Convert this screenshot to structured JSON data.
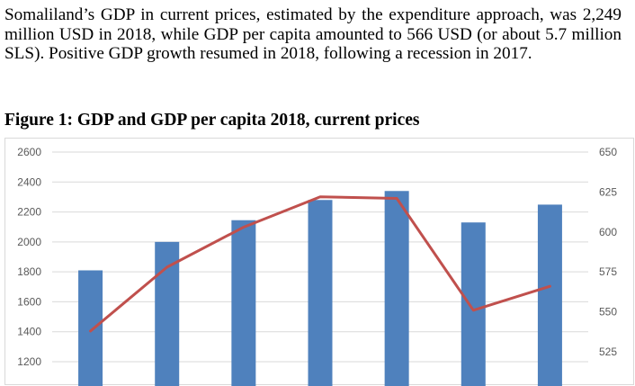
{
  "paragraph": "Somaliland’s GDP in current prices, estimated by the expenditure approach, was 2,249 million USD in 2018, while GDP per capita amounted to 566 USD (or about 5.7 million SLS). Positive GDP growth resumed in 2018, following a recession in 2017.",
  "figure_title": "Figure 1: GDP and GDP per capita 2018, current prices",
  "chart_data": {
    "type": "bar",
    "title": "",
    "xlabel": "",
    "ylabel": "",
    "ylim": [
      1100,
      2600
    ],
    "y2lim": [
      512,
      650
    ],
    "yticks": [
      1200,
      1400,
      1600,
      1800,
      2000,
      2200,
      2400,
      2600
    ],
    "y2ticks": [
      525,
      550,
      575,
      600,
      625,
      650
    ],
    "grid": true,
    "series": [
      {
        "type": "bar",
        "axis": "left",
        "color": "#4f81bd",
        "values": [
          1810,
          2000,
          2145,
          2280,
          2340,
          2130,
          2249
        ]
      },
      {
        "type": "line",
        "axis": "right",
        "color": "#c0504d",
        "values": [
          538,
          578,
          603,
          622,
          621,
          551,
          566
        ]
      }
    ]
  }
}
